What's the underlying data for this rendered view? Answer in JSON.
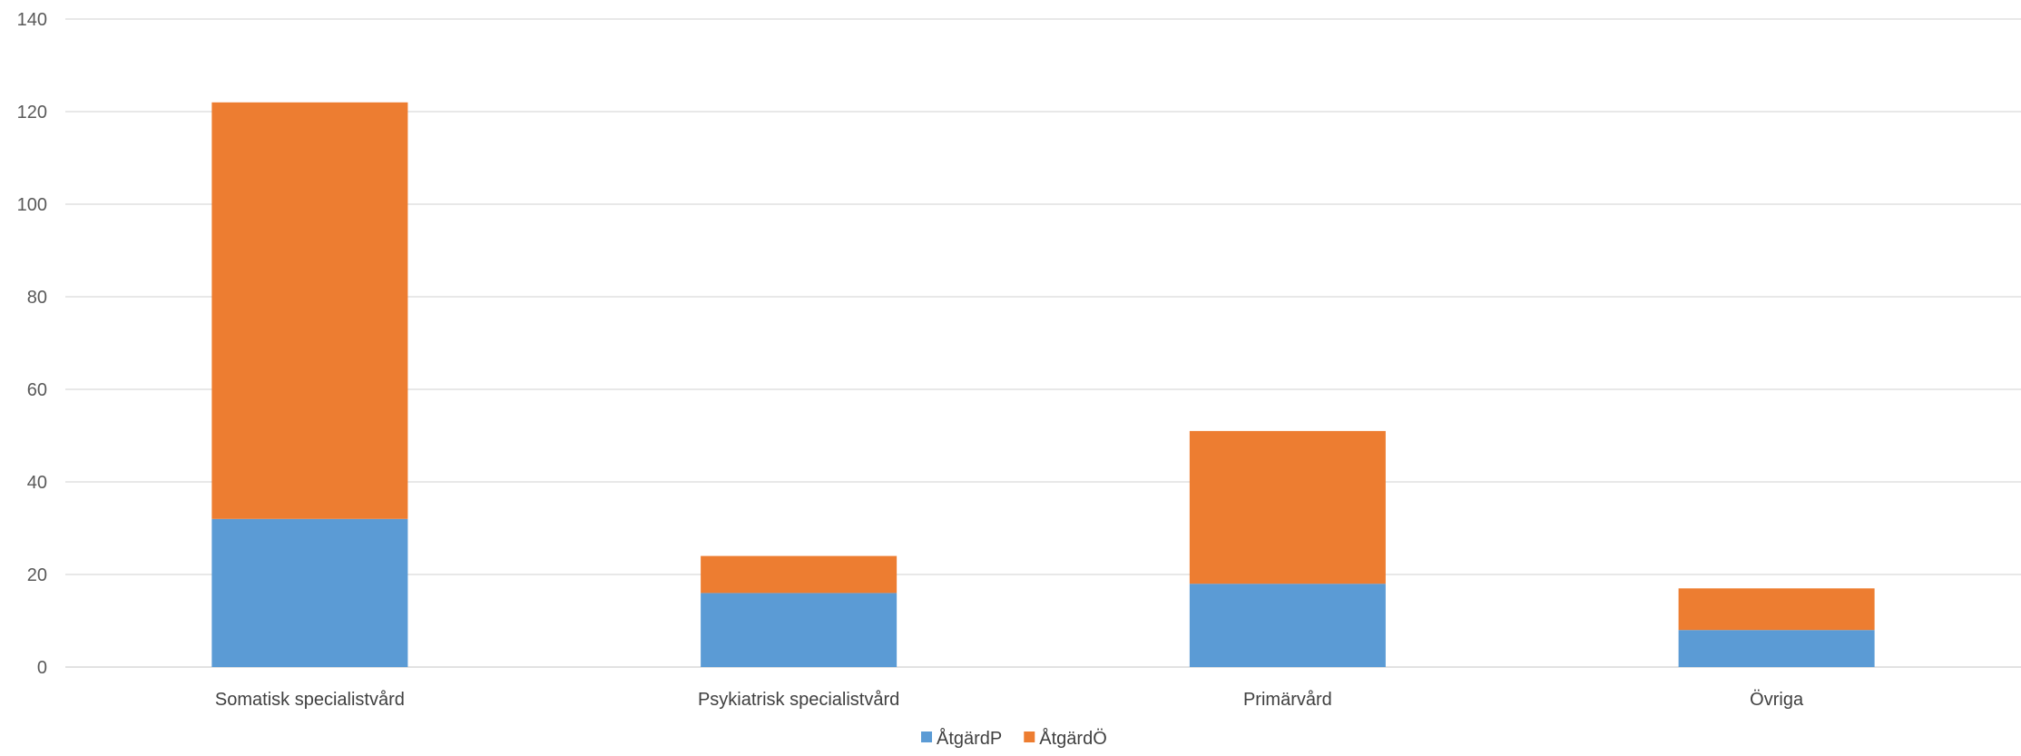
{
  "chart_data": {
    "type": "bar",
    "stacked": true,
    "title": "",
    "xlabel": "",
    "ylabel": "",
    "categories": [
      "Somatisk specialistvård",
      "Psykiatrisk specialistvård",
      "Primärvård",
      "Övriga"
    ],
    "series": [
      {
        "name": "ÅtgärdP",
        "color": "#5b9bd5",
        "values": [
          32,
          16,
          18,
          8
        ]
      },
      {
        "name": "ÅtgärdÖ",
        "color": "#ed7d31",
        "values": [
          90,
          8,
          33,
          9
        ]
      }
    ],
    "ylim": [
      0,
      140
    ],
    "yticks": [
      0,
      20,
      40,
      60,
      80,
      100,
      120,
      140
    ],
    "grid": true,
    "legend_position": "bottom"
  }
}
